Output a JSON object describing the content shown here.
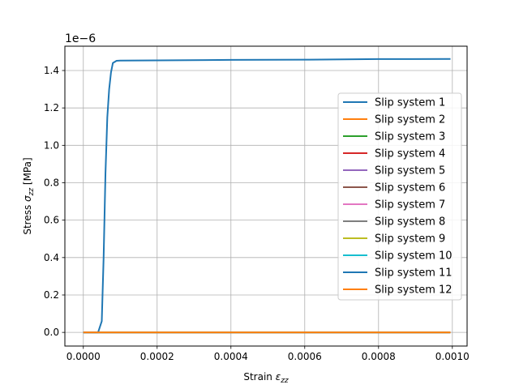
{
  "chart_data": {
    "type": "line",
    "xlabel_prefix": "Strain ",
    "xlabel_symbol": "ε",
    "xlabel_subscript": "zz",
    "ylabel_prefix": "Stress ",
    "ylabel_symbol": "σ",
    "ylabel_subscript": "zz",
    "ylabel_suffix": " [MPa]",
    "offset_text_base": "1e",
    "offset_text_exponent": "−6",
    "xlim": [
      -5e-05,
      0.00104
    ],
    "ylim": [
      -0.073,
      1.53
    ],
    "y_scale": 1e-06,
    "xticks": [
      0.0,
      0.0002,
      0.0004,
      0.0006,
      0.0008,
      0.001
    ],
    "xtick_labels": [
      "0.0000",
      "0.0002",
      "0.0004",
      "0.0006",
      "0.0008",
      "0.0010"
    ],
    "yticks": [
      0.0,
      0.2,
      0.4,
      0.6,
      0.8,
      1.0,
      1.2,
      1.4
    ],
    "ytick_labels": [
      "0.0",
      "0.2",
      "0.4",
      "0.6",
      "0.8",
      "1.0",
      "1.2",
      "1.4"
    ],
    "grid": true,
    "legend_position": "right",
    "series": [
      {
        "name": "Slip system 1",
        "color": "#1f77b4",
        "x": [
          0.0,
          4e-05
        ],
        "y": [
          0.0,
          0.0
        ]
      },
      {
        "name": "Slip system 2",
        "color": "#ff7f0e",
        "x": [
          0.0,
          0.000995
        ],
        "y": [
          0.0,
          0.0
        ]
      },
      {
        "name": "Slip system 3",
        "color": "#2ca02c",
        "x": [
          0.0,
          0.000995
        ],
        "y": [
          0.0,
          0.0
        ]
      },
      {
        "name": "Slip system 4",
        "color": "#d62728",
        "x": [
          0.0,
          0.000995
        ],
        "y": [
          0.0,
          0.0
        ]
      },
      {
        "name": "Slip system 5",
        "color": "#9467bd",
        "x": [
          0.0,
          0.000995
        ],
        "y": [
          0.0,
          0.0
        ]
      },
      {
        "name": "Slip system 6",
        "color": "#8c564b",
        "x": [
          0.0,
          0.000995
        ],
        "y": [
          0.0,
          0.0
        ]
      },
      {
        "name": "Slip system 7",
        "color": "#e377c2",
        "x": [
          0.0,
          0.000995
        ],
        "y": [
          0.0,
          0.0
        ]
      },
      {
        "name": "Slip system 8",
        "color": "#7f7f7f",
        "x": [
          0.0,
          0.000995
        ],
        "y": [
          0.0,
          0.0
        ]
      },
      {
        "name": "Slip system 9",
        "color": "#bcbd22",
        "x": [
          0.0,
          0.000995
        ],
        "y": [
          0.0,
          0.0
        ]
      },
      {
        "name": "Slip system 10",
        "color": "#17becf",
        "x": [
          0.0,
          0.000995
        ],
        "y": [
          0.0,
          0.0
        ]
      },
      {
        "name": "Slip system 11",
        "color": "#1f77b4",
        "x": [
          0.0,
          4e-05,
          5e-05,
          5.5e-05,
          6e-05,
          6.5e-05,
          7e-05,
          7.5e-05,
          8e-05,
          9e-05,
          0.0001,
          0.0002,
          0.0004,
          0.0006,
          0.0008,
          0.000995
        ],
        "y": [
          0.0,
          0.0,
          0.06,
          0.4,
          0.85,
          1.15,
          1.3,
          1.39,
          1.44,
          1.452,
          1.453,
          1.454,
          1.457,
          1.458,
          1.461,
          1.462
        ]
      },
      {
        "name": "Slip system 12",
        "color": "#ff7f0e",
        "x": [
          0.0,
          0.000995
        ],
        "y": [
          0.0,
          0.0
        ]
      }
    ]
  }
}
